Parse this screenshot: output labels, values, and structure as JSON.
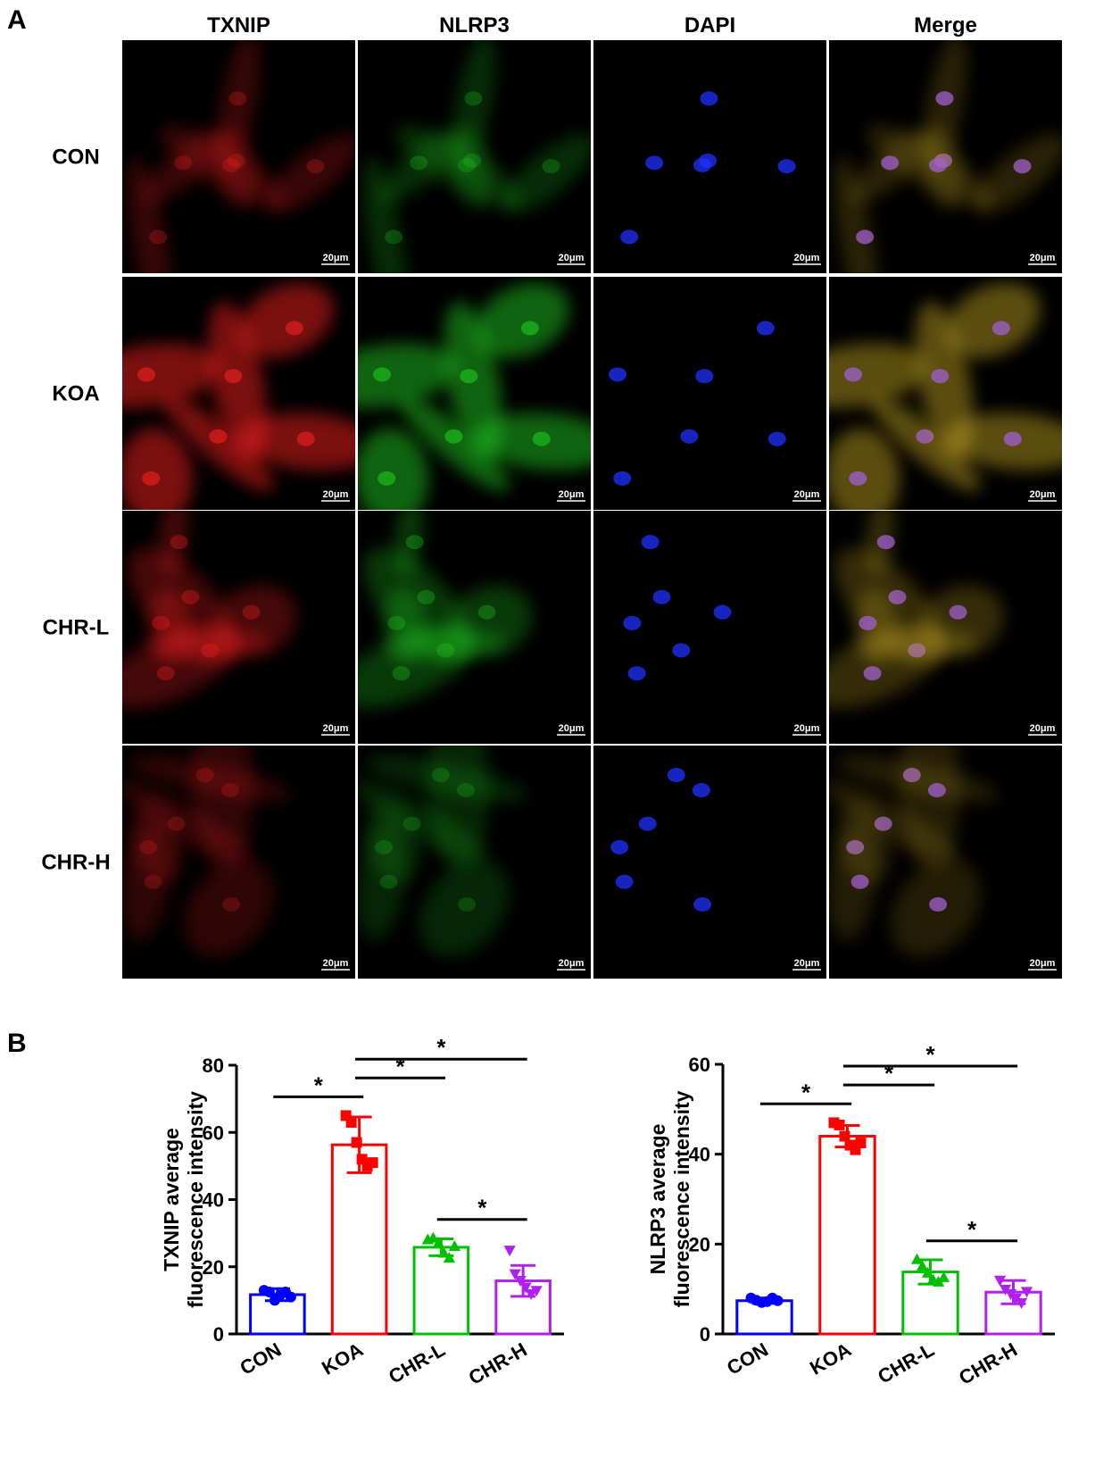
{
  "panel_a": {
    "label": "A",
    "columns": [
      "TXNIP",
      "NLRP3",
      "DAPI",
      "Merge"
    ],
    "rows": [
      "CON",
      "KOA",
      "CHR-L",
      "CHR-H"
    ],
    "scale_bar": "20μm"
  },
  "panel_b_label": "B",
  "chart_data": [
    {
      "type": "bar",
      "ylabel": [
        "TXNIP average",
        "fluorescence intensity"
      ],
      "categories": [
        "CON",
        "KOA",
        "CHR-L",
        "CHR-H"
      ],
      "colors": [
        "#0000ff",
        "#ff0000",
        "#00c000",
        "#b020f0"
      ],
      "markers": [
        "circle",
        "square",
        "triangle",
        "triangle-down"
      ],
      "values": [
        11.7,
        56.3,
        25.8,
        15.8
      ],
      "errors": [
        1.8,
        8.3,
        2.5,
        4.6
      ],
      "points": [
        [
          13,
          12.5,
          10,
          11.5,
          12.5,
          11
        ],
        [
          65,
          63,
          57,
          52,
          50,
          51
        ],
        [
          28,
          28.5,
          27,
          24,
          22.5,
          26
        ],
        [
          25,
          18,
          16,
          14,
          12,
          13
        ]
      ],
      "ylim": [
        0,
        80
      ],
      "yticks": [
        0,
        20,
        40,
        60,
        80
      ],
      "comparisons": [
        {
          "groups": [
            "CON",
            "KOA"
          ],
          "label": "*"
        },
        {
          "groups": [
            "KOA",
            "CHR-L"
          ],
          "label": "*"
        },
        {
          "groups": [
            "KOA",
            "CHR-H"
          ],
          "label": "*"
        },
        {
          "groups": [
            "CHR-L",
            "CHR-H"
          ],
          "label": "*"
        }
      ]
    },
    {
      "type": "bar",
      "ylabel": [
        "NLRP3 average",
        "fluorescence intensity"
      ],
      "categories": [
        "CON",
        "KOA",
        "CHR-L",
        "CHR-H"
      ],
      "colors": [
        "#0000ff",
        "#ff0000",
        "#00c000",
        "#b020f0"
      ],
      "markers": [
        "circle",
        "square",
        "triangle",
        "triangle-down"
      ],
      "values": [
        7.4,
        44,
        13.8,
        9.3
      ],
      "errors": [
        0.6,
        2.4,
        2.7,
        2.6
      ],
      "points": [
        [
          8,
          7.5,
          7,
          7.2,
          8,
          7.4
        ],
        [
          47,
          46.5,
          44,
          42,
          41,
          42.5
        ],
        [
          16.5,
          15,
          13.5,
          12,
          11.5,
          12.5
        ],
        [
          12,
          10,
          9,
          8,
          7,
          9.5
        ]
      ],
      "ylim": [
        0,
        60
      ],
      "yticks": [
        0,
        20,
        40,
        60
      ],
      "comparisons": [
        {
          "groups": [
            "CON",
            "KOA"
          ],
          "label": "*"
        },
        {
          "groups": [
            "KOA",
            "CHR-L"
          ],
          "label": "*"
        },
        {
          "groups": [
            "KOA",
            "CHR-H"
          ],
          "label": "*"
        },
        {
          "groups": [
            "CHR-L",
            "CHR-H"
          ],
          "label": "*"
        }
      ]
    }
  ]
}
